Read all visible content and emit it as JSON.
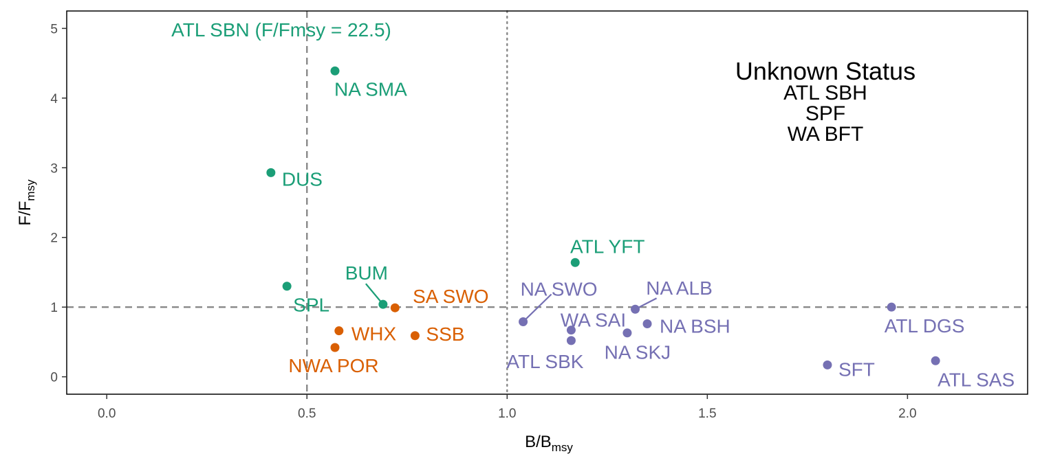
{
  "chart_data": {
    "type": "scatter",
    "title": "",
    "xlabel": {
      "main": "B/B",
      "sub": "msy"
    },
    "ylabel": {
      "main": "F/F",
      "sub": "msy"
    },
    "xlim": [
      -0.1,
      2.3
    ],
    "ylim": [
      -0.25,
      5.25
    ],
    "xticks": [
      {
        "value": 0,
        "label": "0.0"
      },
      {
        "value": 0.5,
        "label": "0.5"
      },
      {
        "value": 1.0,
        "label": "1.0"
      },
      {
        "value": 1.5,
        "label": "1.5"
      },
      {
        "value": 2.0,
        "label": "2.0"
      }
    ],
    "yticks": [
      {
        "value": 0,
        "label": "0"
      },
      {
        "value": 1,
        "label": "1"
      },
      {
        "value": 2,
        "label": "2"
      },
      {
        "value": 3,
        "label": "3"
      },
      {
        "value": 4,
        "label": "4"
      },
      {
        "value": 5,
        "label": "5"
      }
    ],
    "grid": false,
    "colors": {
      "green": "#1b9e77",
      "orange": "#d95f02",
      "purple": "#7570b3"
    },
    "reference_lines": [
      {
        "axis": "x",
        "value": 0.5,
        "style": "dashed"
      },
      {
        "axis": "x",
        "value": 1.0,
        "style": "dotted"
      },
      {
        "axis": "y",
        "value": 1.0,
        "style": "dashed"
      }
    ],
    "points": [
      {
        "label": "NA SMA",
        "x": 0.57,
        "y": 4.39,
        "color": "green"
      },
      {
        "label": "DUS",
        "x": 0.41,
        "y": 2.93,
        "color": "green"
      },
      {
        "label": "SPL",
        "x": 0.45,
        "y": 1.3,
        "color": "green"
      },
      {
        "label": "BUM",
        "x": 0.69,
        "y": 1.04,
        "color": "green"
      },
      {
        "label": "ATL YFT",
        "x": 1.17,
        "y": 1.64,
        "color": "green"
      },
      {
        "label": "SA SWO",
        "x": 0.72,
        "y": 0.99,
        "color": "orange"
      },
      {
        "label": "WHX",
        "x": 0.58,
        "y": 0.66,
        "color": "orange"
      },
      {
        "label": "NWA POR",
        "x": 0.57,
        "y": 0.42,
        "color": "orange"
      },
      {
        "label": "SSB",
        "x": 0.77,
        "y": 0.59,
        "color": "orange"
      },
      {
        "label": "NA SWO",
        "x": 1.04,
        "y": 0.79,
        "color": "purple"
      },
      {
        "label": "WA SAI",
        "x": 1.16,
        "y": 0.67,
        "color": "purple"
      },
      {
        "label": "ATL SBK",
        "x": 1.16,
        "y": 0.52,
        "color": "purple"
      },
      {
        "label": "NA SKJ",
        "x": 1.3,
        "y": 0.63,
        "color": "purple"
      },
      {
        "label": "NA ALB",
        "x": 1.32,
        "y": 0.97,
        "color": "purple"
      },
      {
        "label": "NA BSH",
        "x": 1.35,
        "y": 0.76,
        "color": "purple"
      },
      {
        "label": "ATL DGS",
        "x": 1.96,
        "y": 1.0,
        "color": "purple"
      },
      {
        "label": "SFT",
        "x": 1.8,
        "y": 0.17,
        "color": "purple"
      },
      {
        "label": "ATL SAS",
        "x": 2.07,
        "y": 0.23,
        "color": "purple"
      }
    ],
    "annotations": {
      "offscale": "ATL SBN (F/Fmsy = 22.5)",
      "unknown_title": "Unknown Status",
      "unknown_items": [
        "ATL SBH",
        "SPF",
        "WA BFT"
      ]
    }
  }
}
